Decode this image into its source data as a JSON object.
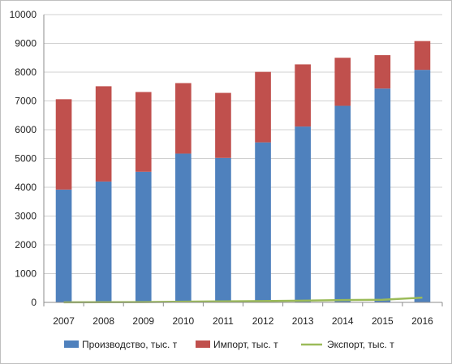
{
  "chart_data": {
    "type": "bar",
    "stacked": true,
    "categories": [
      "2007",
      "2008",
      "2009",
      "2010",
      "2011",
      "2012",
      "2013",
      "2014",
      "2015",
      "2016"
    ],
    "series": [
      {
        "name": "Производство, тыс. т",
        "kind": "bar",
        "color": "#4f81bd",
        "values": [
          3920,
          4200,
          4540,
          5170,
          5020,
          5560,
          6110,
          6830,
          7430,
          8080
        ]
      },
      {
        "name": "Импорт, тыс. т",
        "kind": "bar",
        "color": "#c0504d",
        "values": [
          3140,
          3310,
          2770,
          2450,
          2260,
          2450,
          2160,
          1670,
          1160,
          1000
        ]
      },
      {
        "name": "Экспорт, тыс. т",
        "kind": "line",
        "color": "#9bbb59",
        "values": [
          5,
          8,
          10,
          25,
          35,
          45,
          60,
          80,
          90,
          165
        ]
      }
    ],
    "yticks": [
      "0",
      "1000",
      "2000",
      "3000",
      "4000",
      "5000",
      "6000",
      "7000",
      "8000",
      "9000",
      "10000"
    ],
    "ylim": [
      0,
      10000
    ],
    "grid": true,
    "legend_position": "bottom"
  }
}
